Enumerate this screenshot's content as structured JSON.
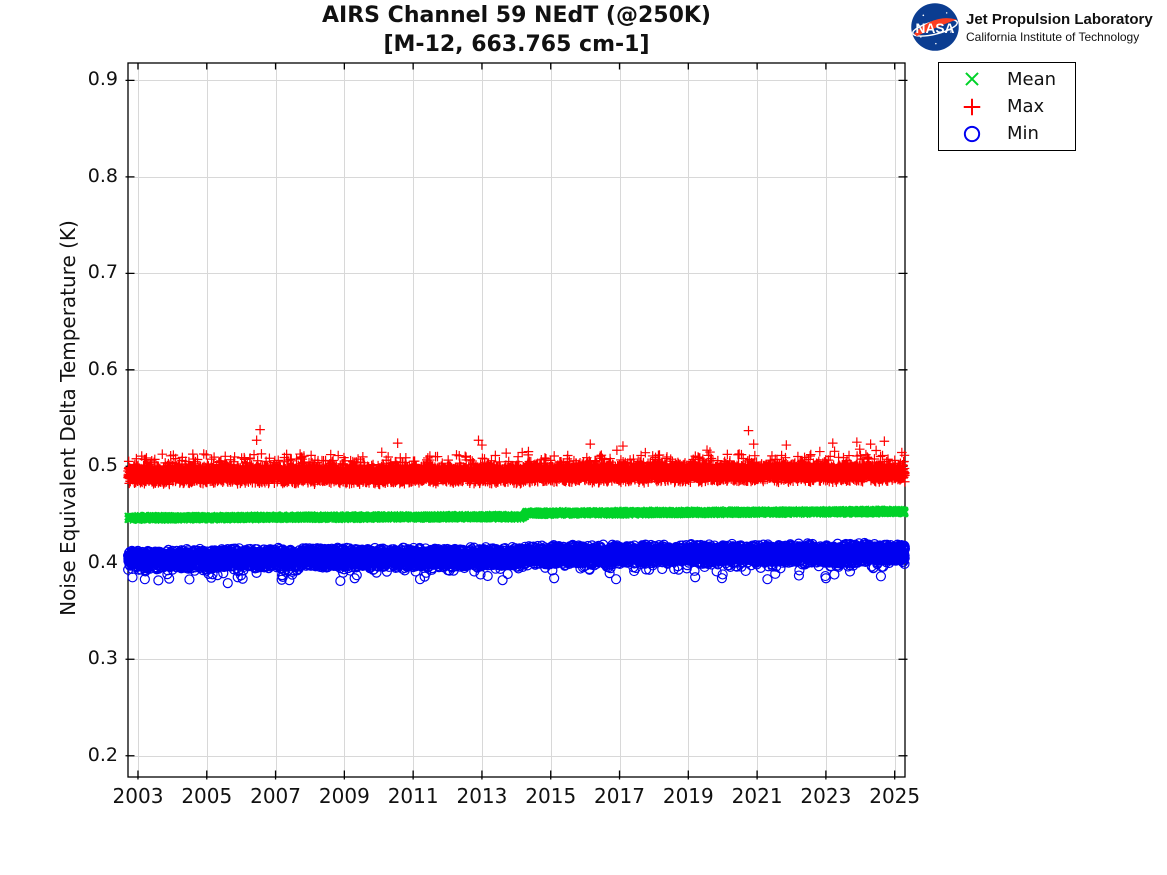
{
  "branding": {
    "logo_icon": "nasa-meatball-icon",
    "logo_text": "NASA",
    "org_line1": "Jet Propulsion Laboratory",
    "org_line2": "California Institute of Technology"
  },
  "legend": {
    "entries": [
      {
        "label": "Mean",
        "marker": "x",
        "color": "#00d228"
      },
      {
        "label": "Max",
        "marker": "plus",
        "color": "#ff0000"
      },
      {
        "label": "Min",
        "marker": "circle",
        "color": "#0000f0"
      }
    ]
  },
  "chart_data": {
    "type": "scatter",
    "title": "AIRS Channel 59 NEdT (@250K)",
    "subtitle": "[M-12, 663.765 cm-1]",
    "xlabel": "",
    "ylabel": "Noise Equivalent Delta Temperature (K)",
    "xlim": [
      2002.71,
      2025.3
    ],
    "ylim": [
      0.178,
      0.918
    ],
    "xticks": [
      2003,
      2005,
      2007,
      2009,
      2011,
      2013,
      2015,
      2017,
      2019,
      2021,
      2023,
      2025
    ],
    "yticks": [
      0.2,
      0.3,
      0.4,
      0.5,
      0.6,
      0.7,
      0.8,
      0.9
    ],
    "grid": true,
    "grid_color": "#d8d8d8",
    "axis_color": "#000000",
    "legend_position": "outside-top-right",
    "series": [
      {
        "name": "Mean",
        "marker": "x",
        "color": "#00d228",
        "points": 7500,
        "trend": [
          [
            2002.71,
            0.4465
          ],
          [
            2008.0,
            0.4472
          ],
          [
            2014.2,
            0.4478
          ],
          [
            2014.3,
            0.4515
          ],
          [
            2020.0,
            0.4523
          ],
          [
            2025.3,
            0.4532
          ]
        ],
        "noise_halfwidth": 0.0027,
        "skew_prob": 0.0,
        "skew_amount": 0.0,
        "skew_dir": 1,
        "outliers": []
      },
      {
        "name": "Max",
        "marker": "plus",
        "color": "#ff0000",
        "points": 7500,
        "trend": [
          [
            2002.71,
            0.4915
          ],
          [
            2014.2,
            0.4918
          ],
          [
            2014.3,
            0.4928
          ],
          [
            2025.3,
            0.4938
          ]
        ],
        "noise_halfwidth": 0.0105,
        "skew_prob": 0.1,
        "skew_amount": 0.016,
        "skew_dir": 1,
        "outliers": [
          [
            2006.45,
            0.527
          ],
          [
            2006.55,
            0.538
          ],
          [
            2010.55,
            0.524
          ],
          [
            2012.9,
            0.527
          ],
          [
            2013.0,
            0.522
          ],
          [
            2016.15,
            0.523
          ],
          [
            2017.1,
            0.521
          ],
          [
            2020.75,
            0.537
          ],
          [
            2020.9,
            0.523
          ],
          [
            2021.85,
            0.522
          ],
          [
            2023.2,
            0.524
          ],
          [
            2023.9,
            0.525
          ],
          [
            2024.3,
            0.523
          ],
          [
            2024.7,
            0.526
          ]
        ]
      },
      {
        "name": "Min",
        "marker": "circle",
        "color": "#0000f0",
        "points": 7500,
        "trend": [
          [
            2002.71,
            0.403
          ],
          [
            2008.0,
            0.405
          ],
          [
            2014.2,
            0.406
          ],
          [
            2014.3,
            0.408
          ],
          [
            2020.0,
            0.409
          ],
          [
            2025.3,
            0.41
          ]
        ],
        "noise_halfwidth": 0.011,
        "skew_prob": 0.06,
        "skew_amount": 0.016,
        "skew_dir": -1,
        "outliers": [
          [
            2003.2,
            0.383
          ],
          [
            2005.9,
            0.385
          ],
          [
            2007.4,
            0.382
          ],
          [
            2009.3,
            0.384
          ],
          [
            2011.2,
            0.383
          ],
          [
            2013.6,
            0.382
          ],
          [
            2015.1,
            0.384
          ],
          [
            2016.9,
            0.383
          ],
          [
            2019.2,
            0.385
          ],
          [
            2021.3,
            0.383
          ],
          [
            2023.0,
            0.384
          ],
          [
            2024.6,
            0.386
          ]
        ]
      }
    ]
  }
}
